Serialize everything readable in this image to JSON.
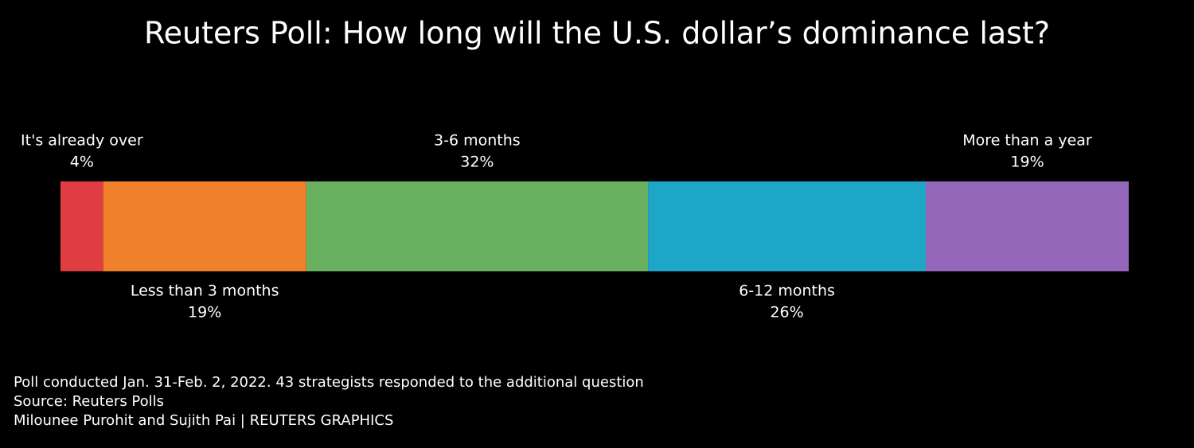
{
  "chart_data": {
    "type": "bar",
    "stacked": true,
    "title": "Reuters Poll: How long will the U.S. dollar’s dominance last?",
    "categories": [
      "It's already over",
      "Less than 3 months",
      "3-6 months",
      "6-12 months",
      "More than a year"
    ],
    "values": [
      4,
      19,
      32,
      26,
      19
    ],
    "value_labels": [
      "4%",
      "19%",
      "32%",
      "26%",
      "19%"
    ],
    "colors": [
      "#e03d42",
      "#f0812a",
      "#69b060",
      "#1ea6c8",
      "#9467bb"
    ],
    "xlim": [
      0,
      100
    ],
    "footnotes": [
      "Poll conducted Jan. 31-Feb. 2, 2022. 43 strategists responded to the additional question",
      "Source: Reuters Polls",
      "Milounee Purohit and Sujith Pai | REUTERS GRAPHICS"
    ]
  }
}
